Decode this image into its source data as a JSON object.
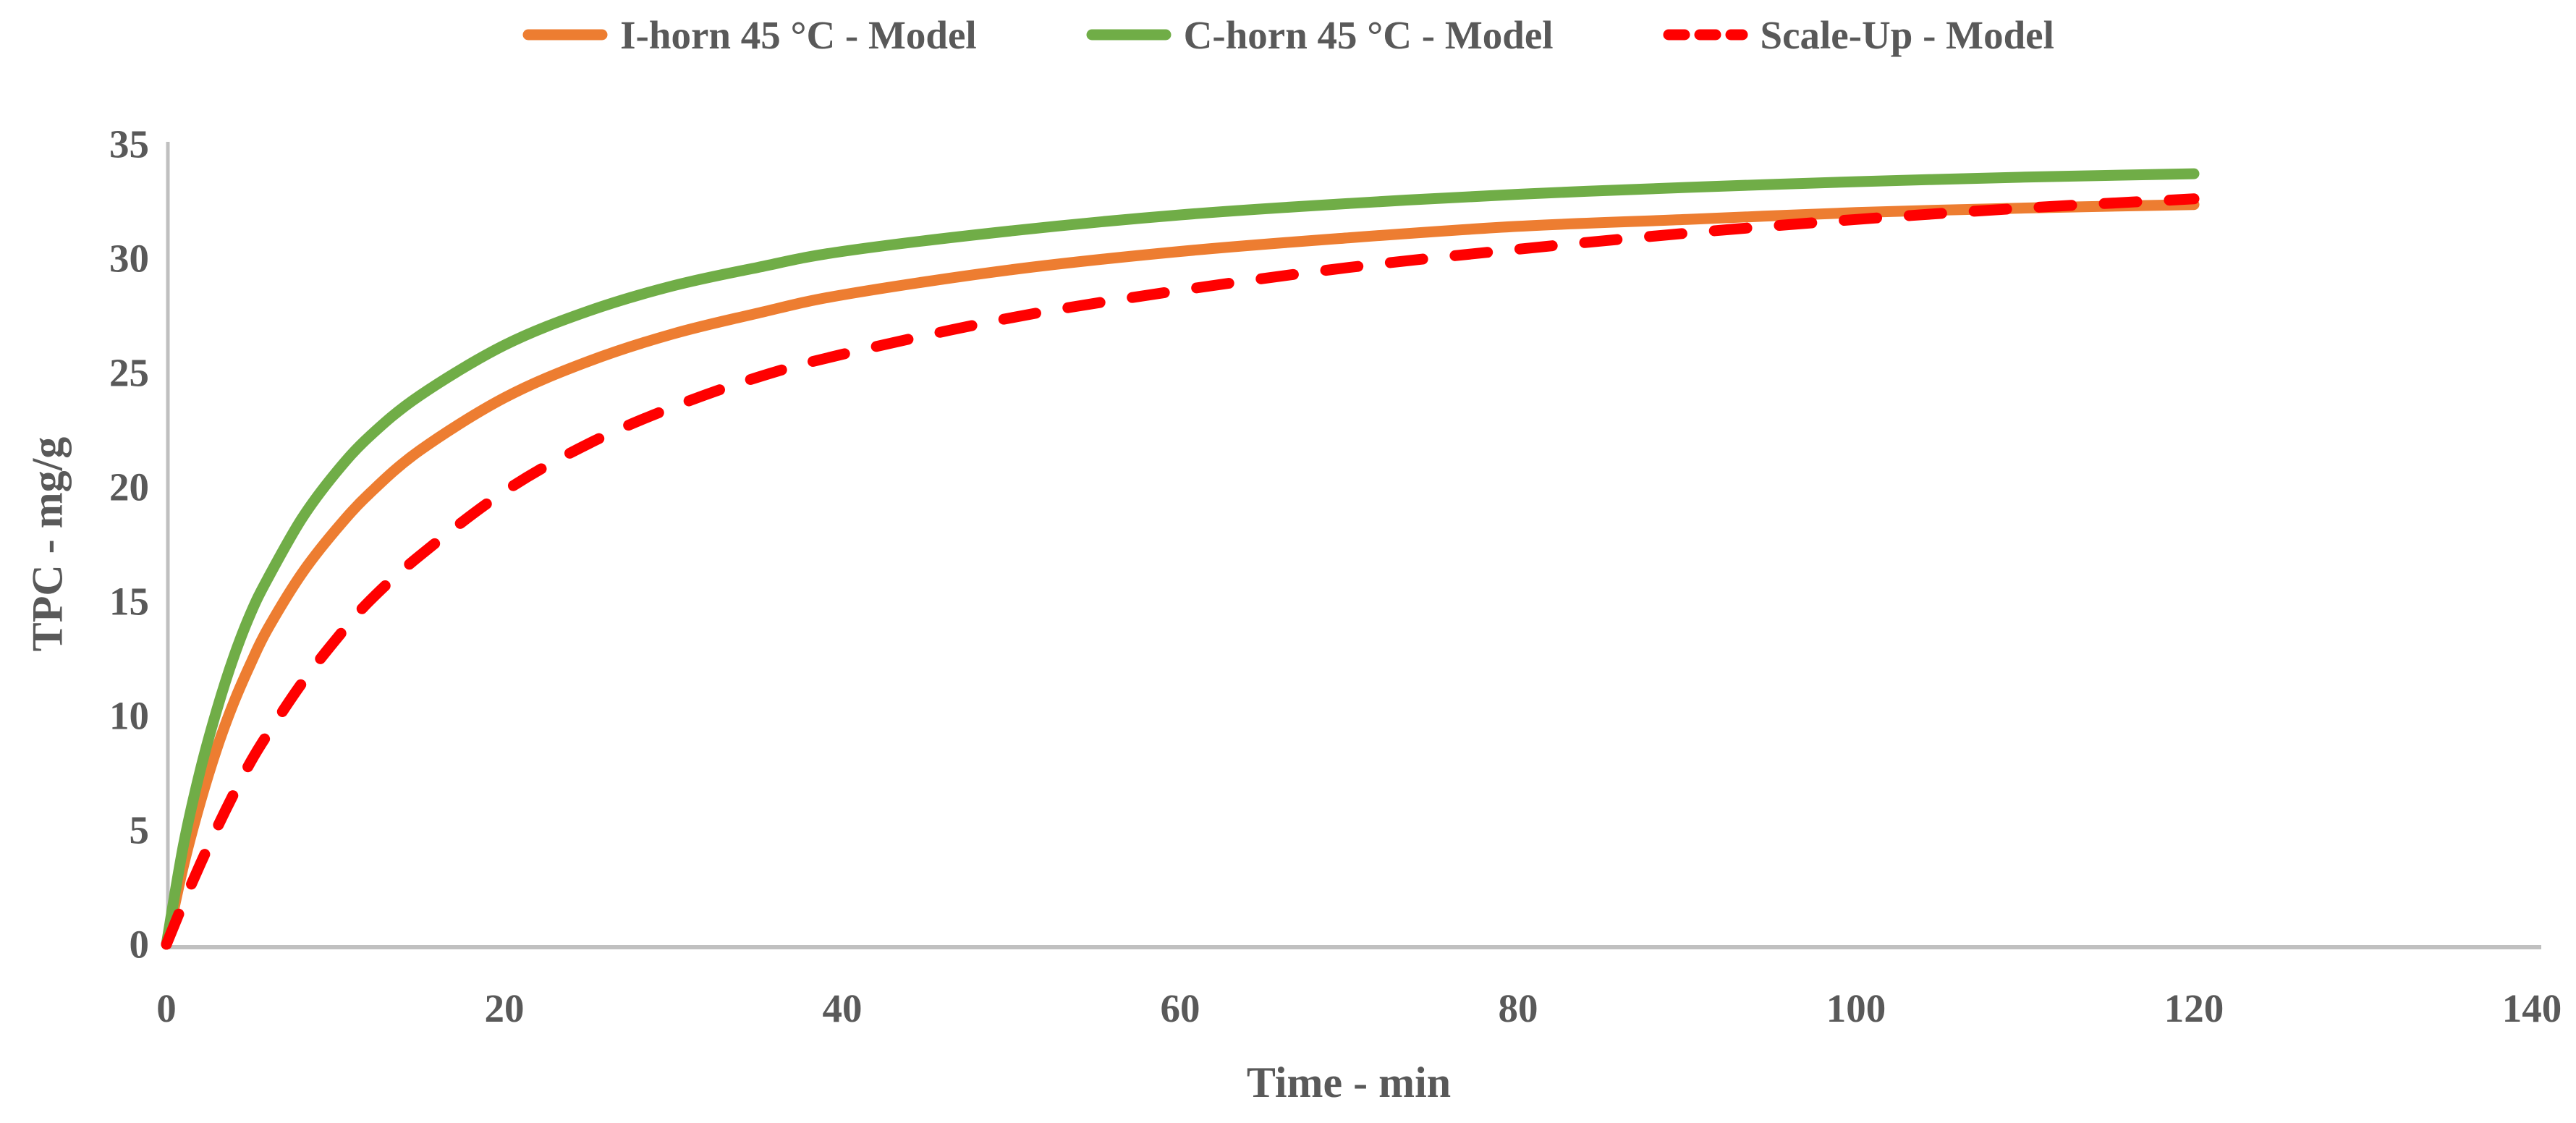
{
  "chart_data": {
    "type": "line",
    "title": "",
    "xlabel": "Time - min",
    "ylabel": "TPC - mg/g",
    "xlim": [
      0,
      140
    ],
    "ylim": [
      0,
      35
    ],
    "x_ticks": [
      0,
      20,
      40,
      60,
      80,
      100,
      120,
      140
    ],
    "y_ticks": [
      0,
      5,
      10,
      15,
      20,
      25,
      30,
      35
    ],
    "grid": false,
    "legend_position": "top-center",
    "colors": {
      "text": "#595959",
      "axis_line": "#c0c0c0"
    },
    "x": [
      0,
      1,
      2,
      3,
      4,
      5,
      6,
      8,
      10,
      12,
      15,
      20,
      25,
      30,
      35,
      40,
      50,
      60,
      70,
      80,
      90,
      100,
      110,
      120
    ],
    "series": [
      {
        "name": "I-horn 45 °C - Model",
        "color": "#ED7D31",
        "line_style": "solid",
        "values": [
          0,
          3.4,
          6.2,
          8.6,
          10.6,
          12.3,
          13.8,
          16.2,
          18.1,
          19.7,
          21.6,
          23.9,
          25.5,
          26.7,
          27.6,
          28.4,
          29.5,
          30.3,
          30.9,
          31.4,
          31.7,
          32.0,
          32.2,
          32.35
        ]
      },
      {
        "name": "C-horn 45 °C - Model",
        "color": "#70AD47",
        "line_style": "solid",
        "values": [
          0,
          4.3,
          7.6,
          10.3,
          12.6,
          14.5,
          16.0,
          18.6,
          20.6,
          22.2,
          24.0,
          26.2,
          27.7,
          28.8,
          29.6,
          30.3,
          31.2,
          31.9,
          32.4,
          32.8,
          33.1,
          33.35,
          33.55,
          33.7
        ]
      },
      {
        "name": "Scale-Up - Model",
        "color": "#FF0000",
        "line_style": "dashed",
        "values": [
          0,
          1.8,
          3.5,
          5.1,
          6.6,
          8.0,
          9.2,
          11.4,
          13.3,
          15.0,
          17.0,
          19.8,
          21.9,
          23.5,
          24.8,
          25.8,
          27.4,
          28.6,
          29.6,
          30.4,
          31.1,
          31.7,
          32.2,
          32.6
        ]
      }
    ]
  }
}
